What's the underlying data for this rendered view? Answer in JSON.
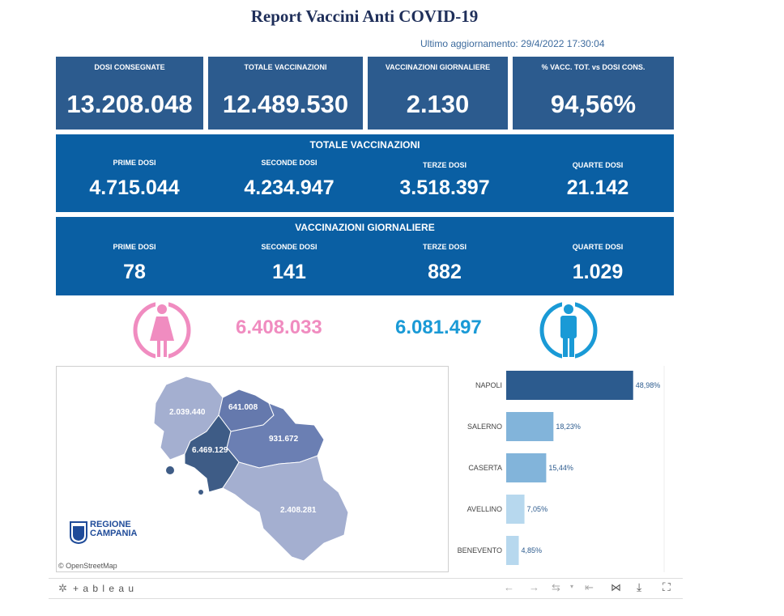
{
  "title": "Report Vaccini Anti COVID-19",
  "last_update": "Ultimo aggiornamento: 29/4/2022 17:30:04",
  "kpis": [
    {
      "label": "DOSI  CONSEGNATE",
      "value": "13.208.048"
    },
    {
      "label": "TOTALE VACCINAZIONI",
      "value": "12.489.530"
    },
    {
      "label": "VACCINAZIONI GIORNALIERE",
      "value": "2.130"
    },
    {
      "label": "% VACC. TOT. vs DOSI CONS.",
      "value": "94,56%"
    }
  ],
  "totale_panel": {
    "title": "TOTALE VACCINAZIONI",
    "items": [
      {
        "label": "PRIME DOSI",
        "value": "4.715.044"
      },
      {
        "label": "SECONDE DOSI",
        "value": "4.234.947"
      },
      {
        "label": "TERZE DOSI",
        "value": "3.518.397"
      },
      {
        "label": "QUARTE DOSI",
        "value": "21.142"
      }
    ]
  },
  "giornaliere_panel": {
    "title": "VACCINAZIONI GIORNALIERE",
    "items": [
      {
        "label": "PRIME DOSI",
        "value": "78"
      },
      {
        "label": "SECONDE DOSI",
        "value": "141"
      },
      {
        "label": "TERZE DOSI",
        "value": "882"
      },
      {
        "label": "QUARTE DOSI",
        "value": "1.029"
      }
    ]
  },
  "gender": {
    "female_value": "6.408.033",
    "male_value": "6.081.497",
    "female_color": "#f08cc0",
    "male_color": "#1a9ad6"
  },
  "map": {
    "labels": [
      "2.039.440",
      "641.008",
      "931.672",
      "6.469.129",
      "2.408.281"
    ],
    "logo_line1": "REGIONE",
    "logo_line2": "CAMPANIA",
    "attribution": "© OpenStreetMap"
  },
  "chart_data": {
    "type": "bar",
    "orientation": "horizontal",
    "categories": [
      "NAPOLI",
      "SALERNO",
      "CASERTA",
      "AVELLINO",
      "BENEVENTO"
    ],
    "values": [
      48.98,
      18.23,
      15.44,
      7.05,
      4.85
    ],
    "value_labels": [
      "48,98%",
      "18,23%",
      "15,44%",
      "7,05%",
      "4,85%"
    ],
    "colors": [
      "#2c5b8e",
      "#82b4da",
      "#82b4da",
      "#b7d8ee",
      "#b7d8ee"
    ],
    "xlim": [
      0,
      50
    ]
  },
  "toolbar": {
    "brand": "+ a b l e a u"
  }
}
